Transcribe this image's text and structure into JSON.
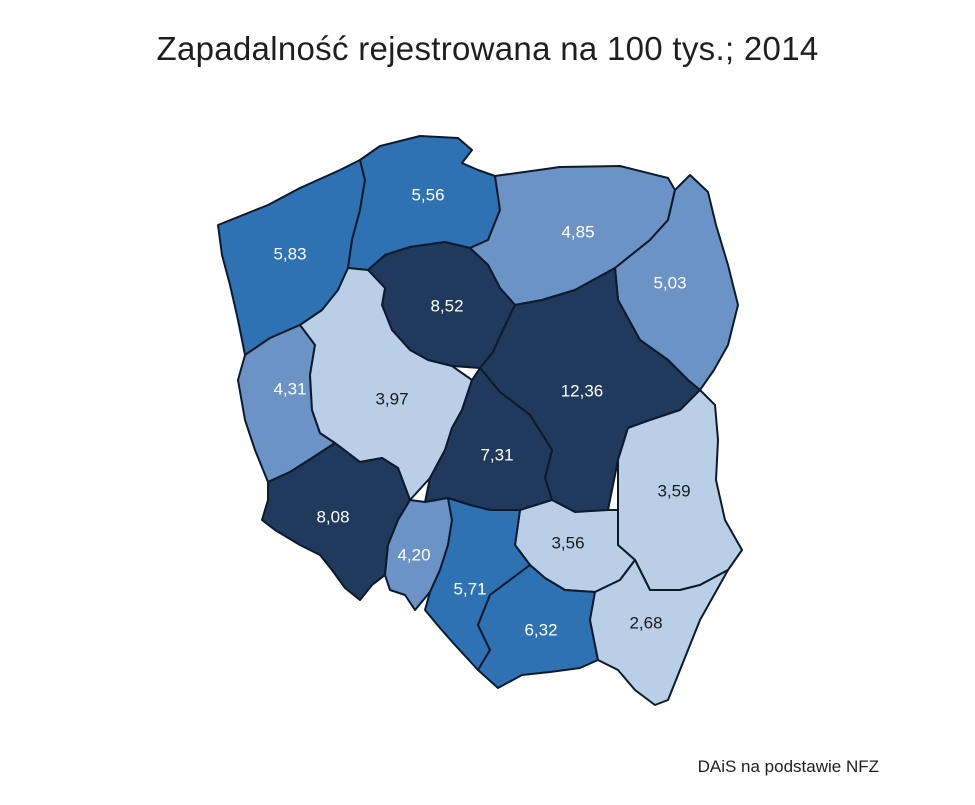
{
  "title": "Zapadalność rejestrowana na 100 tys.; 2014",
  "source": "DAiS na podstawie NFZ",
  "colors": {
    "darkest": "#1f3a5c",
    "dark": "#2e72b4",
    "medium": "#6c93c5",
    "light": "#b9cfe8",
    "outline": "#0c1a2b"
  },
  "regions": [
    {
      "id": "zachodniopomorskie",
      "value": "5,83",
      "shade": "dark"
    },
    {
      "id": "pomorskie",
      "value": "5,56",
      "shade": "dark"
    },
    {
      "id": "warminsko-mazurskie",
      "value": "4,85",
      "shade": "medium"
    },
    {
      "id": "podlaskie",
      "value": "5,03",
      "shade": "medium"
    },
    {
      "id": "kujawsko-pomorskie",
      "value": "8,52",
      "shade": "darkest"
    },
    {
      "id": "lubuskie",
      "value": "4,31",
      "shade": "medium"
    },
    {
      "id": "wielkopolskie",
      "value": "3,97",
      "shade": "light"
    },
    {
      "id": "mazowieckie",
      "value": "12,36",
      "shade": "darkest"
    },
    {
      "id": "lodzkie",
      "value": "7,31",
      "shade": "darkest"
    },
    {
      "id": "lubelskie",
      "value": "3,59",
      "shade": "light"
    },
    {
      "id": "dolnoslaskie",
      "value": "8,08",
      "shade": "darkest"
    },
    {
      "id": "opolskie",
      "value": "4,20",
      "shade": "medium"
    },
    {
      "id": "swietokrzyskie",
      "value": "3,56",
      "shade": "light"
    },
    {
      "id": "slaskie",
      "value": "5,71",
      "shade": "dark"
    },
    {
      "id": "malopolskie",
      "value": "6,32",
      "shade": "dark"
    },
    {
      "id": "podkarpackie",
      "value": "2,68",
      "shade": "light"
    }
  ]
}
